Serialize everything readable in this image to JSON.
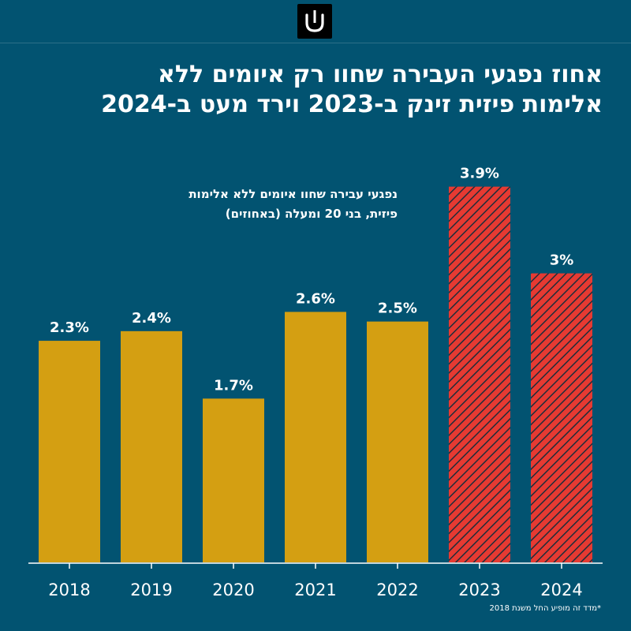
{
  "brand": {
    "logo_name": "brand-logo"
  },
  "headline": {
    "line1": "אחוז נפגעי העבירה שחוו רק איומים ללא",
    "line2": "אלימות פיזית זינק ב-2023 וירד מעט ב-2024"
  },
  "chart_data": {
    "type": "bar",
    "title": "נפגעי עבירה שחוו איומים ללא אלימות פיזית, בני 20 ומעלה (באחוזים)",
    "subtitle_line1": "נפגעי עבירה שחוו איומים ללא אלימות",
    "subtitle_line2": "פיזית, בני 20 ומעלה (באחוזים)",
    "categories": [
      "2018",
      "2019",
      "2020",
      "2021",
      "2022",
      "2023",
      "2024"
    ],
    "values": [
      2.3,
      2.4,
      1.7,
      2.6,
      2.5,
      3.9,
      3.0
    ],
    "labels": [
      "2.3%",
      "2.4%",
      "1.7%",
      "2.6%",
      "2.5%",
      "3.9%",
      "3%"
    ],
    "highlighted": [
      false,
      false,
      false,
      false,
      false,
      true,
      true
    ],
    "ylim": [
      0,
      4.2
    ],
    "xlabel": "",
    "ylabel": "",
    "grid": false,
    "colors": {
      "bar": "#d49f12",
      "highlight": "#e63a32",
      "highlight_stripe": "#1f2d3a",
      "background": "#025371",
      "text": "#ffffff"
    }
  },
  "footnote": "*מדד זה מופיע החל משנת 2018"
}
